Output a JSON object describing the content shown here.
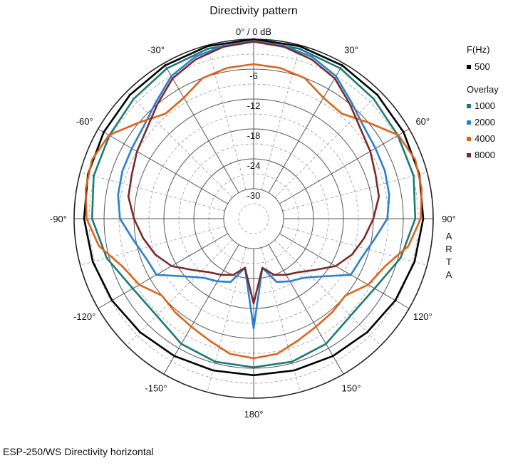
{
  "chart_data": {
    "type": "polar-line",
    "title": "Directivity pattern",
    "radial_ticks": [
      "0° / 0 dB",
      "-6",
      "-12",
      "-18",
      "-24",
      "-30"
    ],
    "radial_values_db": [
      0,
      -6,
      -12,
      -18,
      -24,
      -30
    ],
    "rlim_db": [
      -36,
      0
    ],
    "angle_ticks": [
      {
        "angle": 0,
        "label": ""
      },
      {
        "angle": 30,
        "label": "30°"
      },
      {
        "angle": 60,
        "label": "60°"
      },
      {
        "angle": 90,
        "label": "90°"
      },
      {
        "angle": 120,
        "label": "120°"
      },
      {
        "angle": 150,
        "label": "150°"
      },
      {
        "angle": 180,
        "label": "180°"
      },
      {
        "angle": -150,
        "label": "-150°"
      },
      {
        "angle": -120,
        "label": "-120°"
      },
      {
        "angle": -90,
        "label": "-90°"
      },
      {
        "angle": -60,
        "label": "-60°"
      },
      {
        "angle": -30,
        "label": "-30°"
      }
    ],
    "watermark": "ARTA",
    "legend": {
      "header": "F(Hz)",
      "overlay_header": "Overlay"
    },
    "series": [
      {
        "name": "500",
        "color": "#000000",
        "angles": [
          0,
          15,
          30,
          45,
          60,
          75,
          90,
          105,
          120,
          135,
          150,
          165,
          180
        ],
        "values": [
          0,
          -0.2,
          -0.5,
          -0.9,
          -1.3,
          -1.6,
          -2.0,
          -2.6,
          -3.2,
          -3.8,
          -4.2,
          -4.5,
          -4.6
        ]
      },
      {
        "name": "1000",
        "color": "#1b7b77",
        "angles": [
          0,
          15,
          30,
          45,
          60,
          75,
          90,
          105,
          120,
          135,
          150,
          165,
          180
        ],
        "values": [
          -0.4,
          -0.7,
          -1.2,
          -2.0,
          -2.6,
          -2.8,
          -3.6,
          -5.5,
          -8.0,
          -8.5,
          -7.0,
          -6.3,
          -6.2
        ]
      },
      {
        "name": "2000",
        "color": "#2a7fd0",
        "angles": [
          0,
          10,
          20,
          30,
          40,
          50,
          60,
          70,
          80,
          90,
          100,
          110,
          120,
          130,
          140,
          150,
          160,
          170,
          180
        ],
        "values": [
          -0.4,
          -0.8,
          -1.5,
          -3.0,
          -5.5,
          -7.2,
          -7.8,
          -8.0,
          -8.4,
          -9.2,
          -11.5,
          -13.0,
          -13.5,
          -18.0,
          -20.5,
          -21.5,
          -22.5,
          -26.0,
          -14.0
        ]
      },
      {
        "name": "4000",
        "color": "#e0621a",
        "angles": [
          0,
          10,
          20,
          30,
          40,
          50,
          60,
          70,
          80,
          90,
          100,
          110,
          120,
          130,
          140,
          150,
          160,
          170,
          180
        ],
        "values": [
          -5.0,
          -5.3,
          -6.0,
          -8.0,
          -8.5,
          -6.0,
          -2.5,
          -1.5,
          -1.8,
          -2.5,
          -4.5,
          -8.0,
          -9.5,
          -12.0,
          -11.5,
          -11.0,
          -10.0,
          -8.5,
          -8.0
        ]
      },
      {
        "name": "8000",
        "color": "#7a2a2a",
        "angles": [
          0,
          10,
          20,
          30,
          40,
          50,
          60,
          70,
          80,
          90,
          100,
          110,
          120,
          130,
          140,
          150,
          160,
          170,
          180
        ],
        "values": [
          -0.5,
          -1.0,
          -2.0,
          -3.5,
          -6.0,
          -8.0,
          -9.0,
          -10.0,
          -10.5,
          -12.0,
          -13.5,
          -15.0,
          -17.0,
          -20.0,
          -22.0,
          -23.0,
          -24.0,
          -26.0,
          -19.0
        ]
      }
    ]
  },
  "caption": "ESP-250/WS  Directivity horizontal"
}
